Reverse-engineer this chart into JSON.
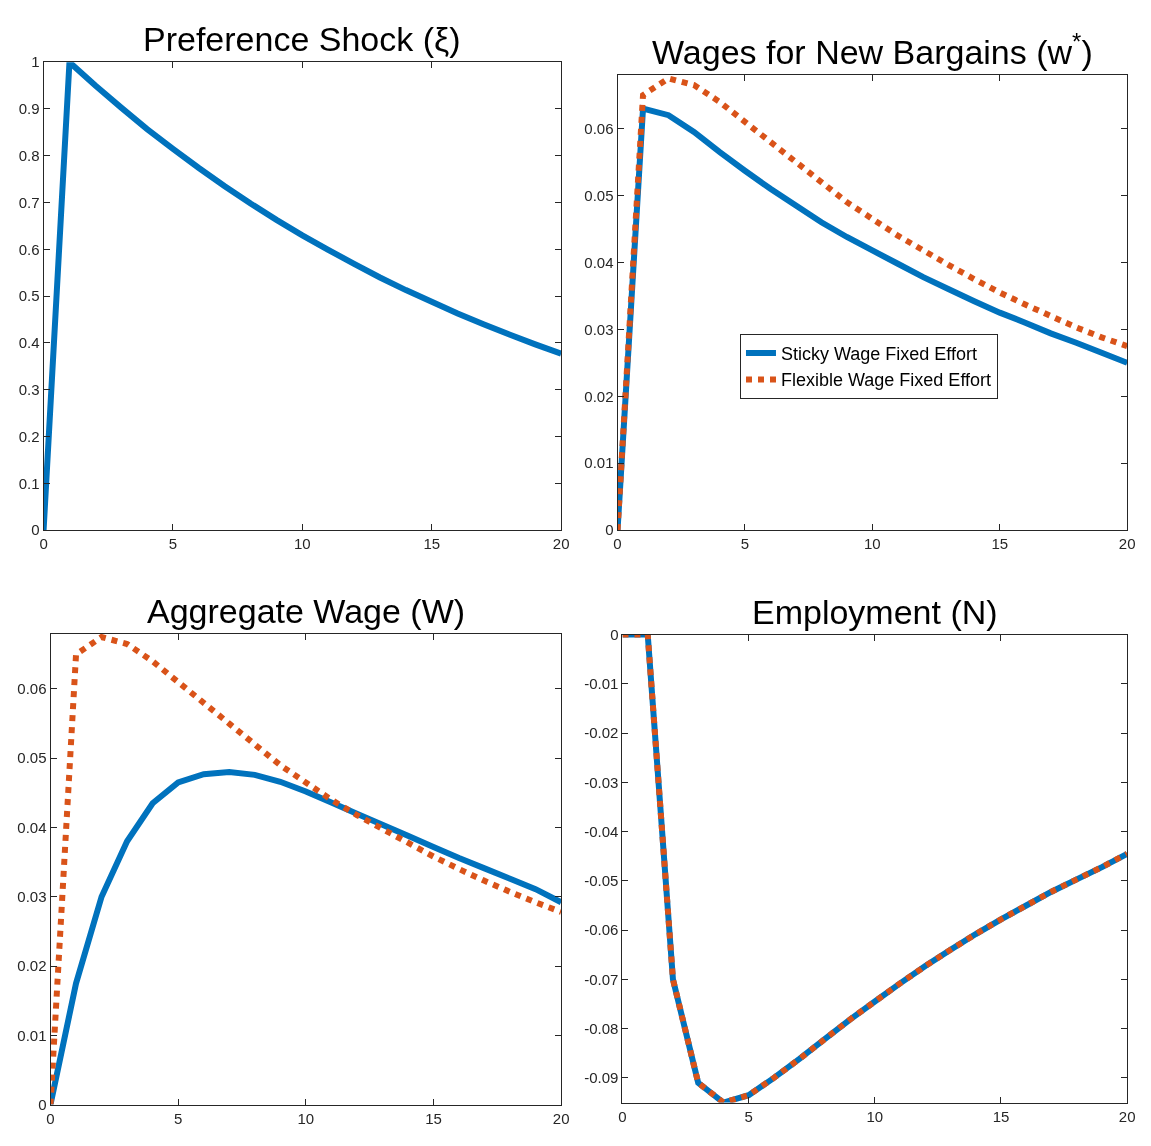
{
  "chart_data": [
    {
      "type": "line",
      "title": "Preference Shock (ξ)",
      "x": [
        0,
        1,
        2,
        3,
        4,
        5,
        6,
        7,
        8,
        9,
        10,
        11,
        12,
        13,
        14,
        15,
        16,
        17,
        18,
        19,
        20
      ],
      "xlim": [
        0,
        20
      ],
      "xticks": [
        0,
        5,
        10,
        15,
        20
      ],
      "ylim": [
        0,
        1
      ],
      "yticks": [
        0,
        0.1,
        0.2,
        0.3,
        0.4,
        0.5,
        0.6,
        0.7,
        0.8,
        0.9,
        1
      ],
      "legend": false,
      "series": [
        {
          "color": "#0072bd",
          "line_style": "solid",
          "values": [
            0,
            1,
            0.95,
            0.903,
            0.857,
            0.815,
            0.774,
            0.735,
            0.698,
            0.663,
            0.63,
            0.599,
            0.569,
            0.54,
            0.513,
            0.488,
            0.463,
            0.44,
            0.418,
            0.397,
            0.377
          ]
        }
      ]
    },
    {
      "type": "line",
      "title": "Wages for New Bargains (w$^{*}$)",
      "x": [
        0,
        1,
        2,
        3,
        4,
        5,
        6,
        7,
        8,
        9,
        10,
        11,
        12,
        13,
        14,
        15,
        16,
        17,
        18,
        19,
        20
      ],
      "xlim": [
        0,
        20
      ],
      "xticks": [
        0,
        5,
        10,
        15,
        20
      ],
      "ylim": [
        0,
        0.068
      ],
      "yticks": [
        0,
        0.01,
        0.02,
        0.03,
        0.04,
        0.05,
        0.06
      ],
      "legend": "right",
      "series": [
        {
          "name": "Sticky Wage Fixed Effort",
          "color": "#0072bd",
          "line_style": "solid",
          "values": [
            0,
            0.063,
            0.062,
            0.0595,
            0.0565,
            0.0537,
            0.051,
            0.0485,
            0.046,
            0.0438,
            0.0418,
            0.0398,
            0.0378,
            0.036,
            0.0342,
            0.0325,
            0.031,
            0.0294,
            0.028,
            0.0265,
            0.025
          ]
        },
        {
          "name": "Flexible Wage Fixed Effort",
          "color": "#d95319",
          "line_style": "dotted",
          "values": [
            0,
            0.065,
            0.0675,
            0.0665,
            0.064,
            0.061,
            0.058,
            0.055,
            0.052,
            0.049,
            0.0465,
            0.044,
            0.0418,
            0.0396,
            0.0375,
            0.0355,
            0.0337,
            0.032,
            0.0303,
            0.0288,
            0.0275
          ]
        }
      ]
    },
    {
      "type": "line",
      "title": "Aggregate Wage (W)",
      "x": [
        0,
        1,
        2,
        3,
        4,
        5,
        6,
        7,
        8,
        9,
        10,
        11,
        12,
        13,
        14,
        15,
        16,
        17,
        18,
        19,
        20
      ],
      "xlim": [
        0,
        20
      ],
      "xticks": [
        0,
        5,
        10,
        15,
        20
      ],
      "ylim": [
        0,
        0.068
      ],
      "yticks": [
        0,
        0.01,
        0.02,
        0.03,
        0.04,
        0.05,
        0.06
      ],
      "legend": false,
      "series": [
        {
          "color": "#0072bd",
          "line_style": "solid",
          "values": [
            0,
            0.0175,
            0.03,
            0.038,
            0.0435,
            0.0465,
            0.0477,
            0.048,
            0.0476,
            0.0466,
            0.0452,
            0.0436,
            0.042,
            0.0404,
            0.0388,
            0.0372,
            0.0356,
            0.0341,
            0.0326,
            0.0311,
            0.0292
          ]
        },
        {
          "color": "#d95319",
          "line_style": "dotted",
          "values": [
            0,
            0.065,
            0.0675,
            0.0665,
            0.064,
            0.061,
            0.058,
            0.055,
            0.052,
            0.049,
            0.0465,
            0.044,
            0.0418,
            0.0398,
            0.0378,
            0.0358,
            0.034,
            0.0323,
            0.0307,
            0.0292,
            0.0278
          ]
        }
      ]
    },
    {
      "type": "line",
      "title": "Employment (N)",
      "x": [
        0,
        1,
        2,
        3,
        4,
        5,
        6,
        7,
        8,
        9,
        10,
        11,
        12,
        13,
        14,
        15,
        16,
        17,
        18,
        19,
        20
      ],
      "xlim": [
        0,
        20
      ],
      "xticks": [
        0,
        5,
        10,
        15,
        20
      ],
      "ylim": [
        -0.095,
        0
      ],
      "yticks": [
        0,
        -0.01,
        -0.02,
        -0.03,
        -0.04,
        -0.05,
        -0.06,
        -0.07,
        -0.08,
        -0.09
      ],
      "legend": false,
      "series": [
        {
          "color": "#0072bd",
          "line_style": "solid",
          "values": [
            0,
            0,
            -0.07,
            -0.091,
            -0.095,
            -0.0935,
            -0.09,
            -0.0862,
            -0.0822,
            -0.0782,
            -0.0745,
            -0.0708,
            -0.0673,
            -0.064,
            -0.0608,
            -0.0578,
            -0.055,
            -0.0522,
            -0.0497,
            -0.0472,
            -0.0445
          ]
        },
        {
          "color": "#d95319",
          "line_style": "dotted",
          "values": [
            0,
            0,
            -0.07,
            -0.091,
            -0.095,
            -0.0935,
            -0.09,
            -0.0862,
            -0.0822,
            -0.0782,
            -0.0745,
            -0.0708,
            -0.0673,
            -0.064,
            -0.0608,
            -0.0578,
            -0.055,
            -0.0522,
            -0.0497,
            -0.0472,
            -0.0445
          ]
        }
      ]
    }
  ]
}
